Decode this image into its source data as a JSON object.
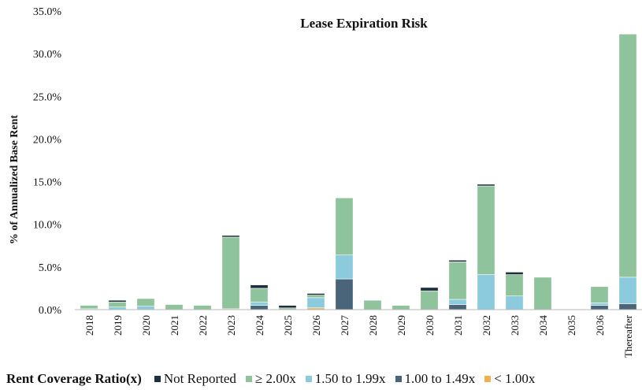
{
  "chart_data": {
    "type": "bar",
    "stacked": true,
    "title": "Lease Expiration Risk",
    "xlabel": "",
    "ylabel": "% of Annualized Base Rent",
    "ylim": [
      0,
      35
    ],
    "yticks": [
      "0.0%",
      "5.0%",
      "10.0%",
      "15.0%",
      "20.0%",
      "25.0%",
      "30.0%",
      "35.0%"
    ],
    "grid": false,
    "legend_position": "bottom",
    "legend_title": "Rent Coverage Ratio(x)",
    "categories": [
      "2018",
      "2019",
      "2020",
      "2021",
      "2022",
      "2023",
      "2024",
      "2025",
      "2026",
      "2027",
      "2028",
      "2029",
      "2030",
      "2031",
      "2032",
      "2033",
      "2034",
      "2035",
      "2036",
      "Thereafter"
    ],
    "series": [
      {
        "name": "< 1.00x",
        "color": "#f2b04c",
        "values": [
          0,
          0,
          0,
          0,
          0,
          0.1,
          0,
          0,
          0.2,
          0,
          0,
          0,
          0,
          0,
          0,
          0,
          0,
          0,
          0,
          0
        ]
      },
      {
        "name": "1.00 to 1.49x",
        "color": "#4a6479",
        "values": [
          0,
          0,
          0,
          0,
          0,
          0,
          0.5,
          0,
          0,
          3.6,
          0,
          0,
          0,
          0.6,
          0,
          0,
          0,
          0,
          0.5,
          0.7
        ]
      },
      {
        "name": "1.50 to 1.99x",
        "color": "#8ccbde",
        "values": [
          0.1,
          0.3,
          0.4,
          0,
          0,
          0,
          0.4,
          0,
          1.2,
          2.8,
          0,
          0,
          0,
          0.6,
          4.1,
          1.6,
          0,
          0,
          0.3,
          3.1
        ]
      },
      {
        "name": "≥ 2.00x",
        "color": "#8fc39b",
        "values": [
          0.4,
          0.6,
          0.9,
          0.6,
          0.5,
          8.4,
          1.6,
          0.2,
          0.3,
          6.7,
          1.1,
          0.5,
          2.2,
          4.4,
          10.4,
          2.5,
          3.8,
          0,
          1.9,
          28.5
        ]
      },
      {
        "name": "Not Reported",
        "color": "#1f2f3f",
        "values": [
          0,
          0.2,
          0,
          0,
          0,
          0.2,
          0.4,
          0.3,
          0.2,
          0,
          0,
          0,
          0.4,
          0.2,
          0.2,
          0.3,
          0,
          0,
          0,
          0
        ]
      }
    ],
    "legend_order": [
      "Not Reported",
      "≥ 2.00x",
      "1.50 to 1.99x",
      "1.00 to 1.49x",
      "< 1.00x"
    ]
  }
}
